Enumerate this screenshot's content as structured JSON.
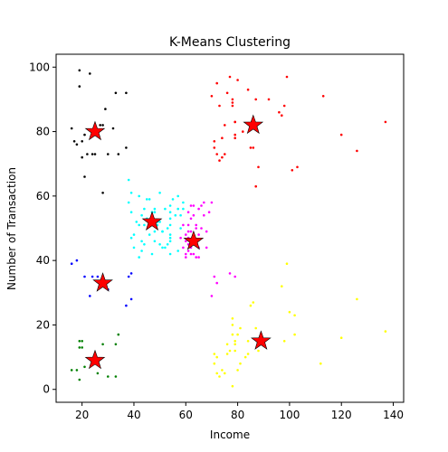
{
  "chart_data": {
    "type": "scatter",
    "title": "K-Means Clustering",
    "xlabel": "Income",
    "ylabel": "Number of Transaction",
    "xlim": [
      10,
      144
    ],
    "ylim": [
      -4,
      104
    ],
    "xticks": [
      "20",
      "40",
      "60",
      "80",
      "100",
      "120",
      "140"
    ],
    "yticks": [
      "0",
      "20",
      "40",
      "60",
      "80",
      "100"
    ],
    "grid": false,
    "series": [
      {
        "color": "#000000",
        "points": [
          [
            19,
            99
          ],
          [
            23,
            98
          ],
          [
            19,
            94
          ],
          [
            16,
            81
          ],
          [
            17,
            77
          ],
          [
            18,
            76
          ],
          [
            20,
            77
          ],
          [
            21,
            79
          ],
          [
            20,
            72
          ],
          [
            22,
            73
          ],
          [
            24,
            73
          ],
          [
            25,
            73
          ],
          [
            27,
            82
          ],
          [
            29,
            87
          ],
          [
            28,
            82
          ],
          [
            30,
            73
          ],
          [
            32,
            81
          ],
          [
            34,
            73
          ],
          [
            37,
            75
          ],
          [
            37,
            92
          ],
          [
            33,
            92
          ],
          [
            21,
            66
          ],
          [
            28,
            61
          ]
        ]
      },
      {
        "color": "#ff0000",
        "points": [
          [
            70,
            91
          ],
          [
            72,
            95
          ],
          [
            73,
            88
          ],
          [
            74,
            78
          ],
          [
            75,
            82
          ],
          [
            76,
            92
          ],
          [
            77,
            97
          ],
          [
            78,
            89
          ],
          [
            78,
            88
          ],
          [
            78,
            90
          ],
          [
            79,
            79
          ],
          [
            79,
            78
          ],
          [
            79,
            83
          ],
          [
            79,
            83
          ],
          [
            80,
            96
          ],
          [
            82,
            80
          ],
          [
            84,
            93
          ],
          [
            85,
            75
          ],
          [
            86,
            75
          ],
          [
            87,
            90
          ],
          [
            88,
            69
          ],
          [
            87,
            63
          ],
          [
            92,
            90
          ],
          [
            96,
            86
          ],
          [
            97,
            85
          ],
          [
            98,
            88
          ],
          [
            99,
            97
          ],
          [
            101,
            68
          ],
          [
            103,
            69
          ],
          [
            113,
            91
          ],
          [
            120,
            79
          ],
          [
            126,
            74
          ],
          [
            137,
            83
          ],
          [
            71,
            77
          ],
          [
            71,
            75
          ],
          [
            72,
            73
          ],
          [
            73,
            71
          ],
          [
            74,
            72
          ],
          [
            75,
            73
          ]
        ]
      },
      {
        "color": "#00ffff",
        "points": [
          [
            38,
            65
          ],
          [
            39,
            61
          ],
          [
            42,
            60
          ],
          [
            44,
            56
          ],
          [
            45,
            59
          ],
          [
            46,
            59
          ],
          [
            47,
            55
          ],
          [
            48,
            56
          ],
          [
            48,
            49
          ],
          [
            50,
            61
          ],
          [
            52,
            56
          ],
          [
            53,
            50
          ],
          [
            54,
            51
          ],
          [
            54,
            48
          ],
          [
            54,
            57
          ],
          [
            55,
            59
          ],
          [
            56,
            54
          ],
          [
            57,
            56
          ],
          [
            57,
            60
          ],
          [
            58,
            50
          ],
          [
            58,
            54
          ],
          [
            59,
            58
          ],
          [
            59,
            56
          ],
          [
            48,
            55
          ],
          [
            49,
            51
          ],
          [
            50,
            52
          ],
          [
            51,
            49
          ],
          [
            52,
            44
          ],
          [
            54,
            42
          ],
          [
            54,
            46
          ],
          [
            54,
            55
          ],
          [
            54,
            53
          ],
          [
            39,
            55
          ],
          [
            39,
            47
          ],
          [
            40,
            44
          ],
          [
            40,
            48
          ],
          [
            41,
            52
          ],
          [
            42,
            41
          ],
          [
            42,
            51
          ],
          [
            43,
            46
          ],
          [
            43,
            43
          ],
          [
            44,
            51
          ],
          [
            44,
            45
          ],
          [
            45,
            53
          ],
          [
            46,
            48
          ],
          [
            47,
            42
          ],
          [
            48,
            46
          ],
          [
            49,
            52
          ],
          [
            50,
            45
          ],
          [
            51,
            44
          ],
          [
            51,
            49
          ],
          [
            53,
            45
          ],
          [
            54,
            47
          ],
          [
            57,
            43
          ],
          [
            38,
            58
          ],
          [
            43,
            54
          ]
        ]
      },
      {
        "color": "#ff00ff",
        "points": [
          [
            58,
            47
          ],
          [
            59,
            51
          ],
          [
            59,
            44
          ],
          [
            60,
            48
          ],
          [
            60,
            46
          ],
          [
            60,
            42
          ],
          [
            60,
            41
          ],
          [
            61,
            55
          ],
          [
            61,
            51
          ],
          [
            61,
            49
          ],
          [
            61,
            45
          ],
          [
            61,
            43
          ],
          [
            62,
            57
          ],
          [
            62,
            53
          ],
          [
            62,
            49
          ],
          [
            62,
            44
          ],
          [
            62,
            42
          ],
          [
            63,
            54
          ],
          [
            63,
            42
          ],
          [
            63,
            57
          ],
          [
            64,
            41
          ],
          [
            64,
            50
          ],
          [
            64,
            46
          ],
          [
            64,
            51
          ],
          [
            65,
            56
          ],
          [
            65,
            48
          ],
          [
            65,
            44
          ],
          [
            65,
            41
          ],
          [
            66,
            57
          ],
          [
            66,
            50
          ],
          [
            67,
            58
          ],
          [
            67,
            54
          ],
          [
            68,
            44
          ],
          [
            68,
            49
          ],
          [
            69,
            55
          ],
          [
            70,
            58
          ],
          [
            70,
            29
          ],
          [
            71,
            35
          ],
          [
            72,
            33
          ],
          [
            77,
            36
          ],
          [
            79,
            35
          ],
          [
            61,
            47
          ],
          [
            63,
            47
          ]
        ]
      },
      {
        "color": "#0000ff",
        "points": [
          [
            16,
            39
          ],
          [
            18,
            40
          ],
          [
            21,
            35
          ],
          [
            23,
            29
          ],
          [
            24,
            35
          ],
          [
            26,
            35
          ],
          [
            27,
            32
          ],
          [
            29,
            32
          ],
          [
            30,
            31
          ],
          [
            38,
            35
          ],
          [
            39,
            36
          ],
          [
            39,
            28
          ],
          [
            37,
            26
          ]
        ]
      },
      {
        "color": "#008000",
        "points": [
          [
            16,
            6
          ],
          [
            18,
            6
          ],
          [
            19,
            3
          ],
          [
            19,
            15
          ],
          [
            20,
            15
          ],
          [
            19,
            13
          ],
          [
            20,
            13
          ],
          [
            21,
            7
          ],
          [
            26,
            5
          ],
          [
            28,
            14
          ],
          [
            30,
            4
          ],
          [
            33,
            4
          ],
          [
            33,
            14
          ],
          [
            34,
            17
          ]
        ]
      },
      {
        "color": "#ffff00",
        "points": [
          [
            71,
            11
          ],
          [
            71,
            8
          ],
          [
            72,
            10
          ],
          [
            72,
            5
          ],
          [
            73,
            4
          ],
          [
            74,
            6
          ],
          [
            75,
            5
          ],
          [
            76,
            11
          ],
          [
            77,
            12
          ],
          [
            78,
            20
          ],
          [
            78,
            17
          ],
          [
            78,
            22
          ],
          [
            78,
            1
          ],
          [
            79,
            15
          ],
          [
            79,
            14
          ],
          [
            80,
            6
          ],
          [
            81,
            8
          ],
          [
            83,
            10
          ],
          [
            84,
            11
          ],
          [
            85,
            26
          ],
          [
            86,
            27
          ],
          [
            87,
            19
          ],
          [
            88,
            12
          ],
          [
            89,
            16
          ],
          [
            97,
            32
          ],
          [
            98,
            15
          ],
          [
            99,
            39
          ],
          [
            100,
            24
          ],
          [
            102,
            23
          ],
          [
            102,
            17
          ],
          [
            112,
            8
          ],
          [
            120,
            16
          ],
          [
            126,
            28
          ],
          [
            137,
            18
          ],
          [
            79,
            12
          ],
          [
            80,
            17
          ],
          [
            81,
            19
          ],
          [
            84,
            15
          ],
          [
            76,
            14
          ]
        ]
      }
    ],
    "centroids": [
      [
        25,
        80
      ],
      [
        86,
        82
      ],
      [
        47,
        52
      ],
      [
        63,
        46
      ],
      [
        28,
        33
      ],
      [
        25,
        9
      ],
      [
        89,
        15
      ]
    ],
    "centroid_color": "#ff0000"
  }
}
